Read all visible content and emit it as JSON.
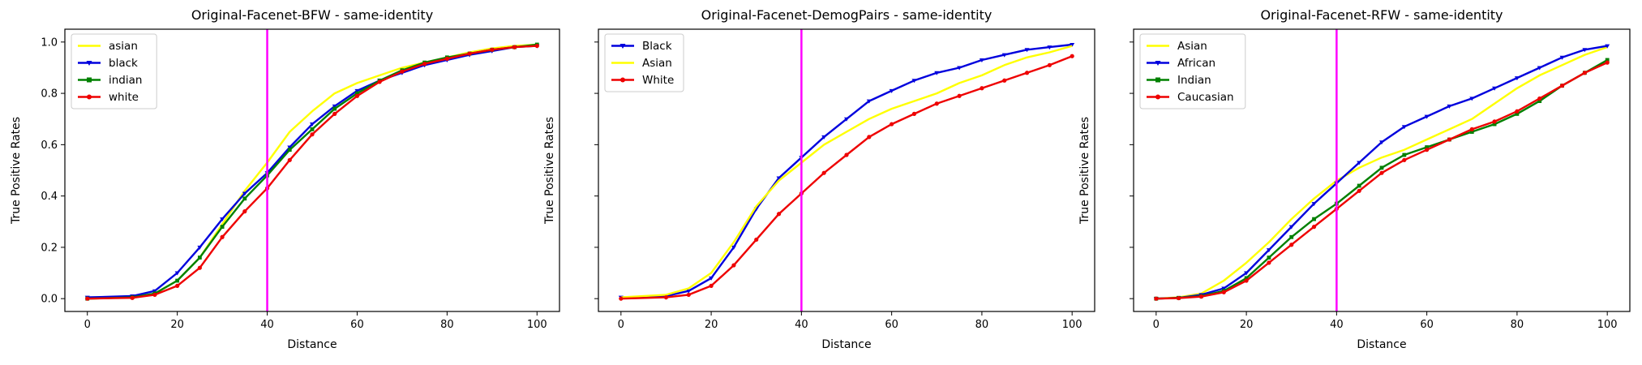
{
  "figure": {
    "colors": {
      "axis": "#000000",
      "marker_line": "#ff00ff",
      "legend_border": "#cccccc"
    }
  },
  "chart_data": [
    {
      "type": "line",
      "title": "Original-Facenet-BFW - same-identity",
      "xlabel": "Distance",
      "ylabel": "True Positive Rates",
      "xlim": [
        -5,
        105
      ],
      "ylim": [
        -0.05,
        1.05
      ],
      "xticks": [
        "0",
        "20",
        "40",
        "60",
        "80",
        "100"
      ],
      "yticks": [
        "0.0",
        "0.2",
        "0.4",
        "0.6",
        "0.8",
        "1.0"
      ],
      "show_ytick_labels": true,
      "vline_x": 40,
      "legend_position": "top-left",
      "grid": false,
      "series": [
        {
          "name": "asian",
          "color": "#ffff00",
          "marker": "none",
          "x": [
            0,
            10,
            15,
            20,
            25,
            30,
            35,
            40,
            45,
            50,
            55,
            60,
            65,
            70,
            75,
            80,
            85,
            90,
            95,
            100
          ],
          "y": [
            0.0,
            0.005,
            0.02,
            0.07,
            0.16,
            0.29,
            0.42,
            0.53,
            0.65,
            0.73,
            0.8,
            0.84,
            0.87,
            0.9,
            0.92,
            0.94,
            0.96,
            0.975,
            0.985,
            0.99
          ]
        },
        {
          "name": "black",
          "color": "#0000dd",
          "marker": "triangle",
          "x": [
            0,
            10,
            15,
            20,
            25,
            30,
            35,
            40,
            45,
            50,
            55,
            60,
            65,
            70,
            75,
            80,
            85,
            90,
            95,
            100
          ],
          "y": [
            0.005,
            0.01,
            0.03,
            0.1,
            0.2,
            0.31,
            0.41,
            0.49,
            0.59,
            0.68,
            0.75,
            0.81,
            0.85,
            0.88,
            0.91,
            0.93,
            0.95,
            0.965,
            0.98,
            0.985
          ]
        },
        {
          "name": "indian",
          "color": "#008000",
          "marker": "square",
          "x": [
            0,
            10,
            15,
            20,
            25,
            30,
            35,
            40,
            45,
            50,
            55,
            60,
            65,
            70,
            75,
            80,
            85,
            90,
            95,
            100
          ],
          "y": [
            0.0,
            0.005,
            0.02,
            0.07,
            0.16,
            0.28,
            0.39,
            0.48,
            0.58,
            0.66,
            0.74,
            0.8,
            0.85,
            0.89,
            0.92,
            0.94,
            0.955,
            0.97,
            0.98,
            0.99
          ]
        },
        {
          "name": "white",
          "color": "#ee0000",
          "marker": "circle",
          "x": [
            0,
            10,
            15,
            20,
            25,
            30,
            35,
            40,
            45,
            50,
            55,
            60,
            65,
            70,
            75,
            80,
            85,
            90,
            95,
            100
          ],
          "y": [
            0.0,
            0.003,
            0.015,
            0.05,
            0.12,
            0.24,
            0.34,
            0.43,
            0.54,
            0.64,
            0.72,
            0.79,
            0.845,
            0.885,
            0.915,
            0.935,
            0.955,
            0.97,
            0.98,
            0.985
          ]
        }
      ]
    },
    {
      "type": "line",
      "title": "Original-Facenet-DemogPairs - same-identity",
      "xlabel": "Distance",
      "ylabel": "True Positive Rates",
      "xlim": [
        -5,
        105
      ],
      "ylim": [
        -0.05,
        1.05
      ],
      "xticks": [
        "0",
        "20",
        "40",
        "60",
        "80",
        "100"
      ],
      "yticks": [
        "0.0",
        "0.2",
        "0.4",
        "0.6",
        "0.8",
        "1.0"
      ],
      "show_ytick_labels": false,
      "vline_x": 40,
      "legend_position": "top-left",
      "grid": false,
      "series": [
        {
          "name": "Black",
          "color": "#0000dd",
          "marker": "triangle",
          "x": [
            0,
            10,
            15,
            20,
            25,
            30,
            35,
            40,
            45,
            50,
            55,
            60,
            65,
            70,
            75,
            80,
            85,
            90,
            95,
            100
          ],
          "y": [
            0.005,
            0.01,
            0.03,
            0.08,
            0.2,
            0.35,
            0.47,
            0.55,
            0.63,
            0.7,
            0.77,
            0.81,
            0.85,
            0.88,
            0.9,
            0.93,
            0.95,
            0.97,
            0.98,
            0.99
          ]
        },
        {
          "name": "Asian",
          "color": "#ffff00",
          "marker": "none",
          "x": [
            0,
            10,
            15,
            20,
            25,
            30,
            35,
            40,
            45,
            50,
            55,
            60,
            65,
            70,
            75,
            80,
            85,
            90,
            95,
            100
          ],
          "y": [
            0.005,
            0.015,
            0.04,
            0.1,
            0.22,
            0.36,
            0.46,
            0.53,
            0.6,
            0.65,
            0.7,
            0.74,
            0.77,
            0.8,
            0.84,
            0.87,
            0.91,
            0.94,
            0.96,
            0.985
          ]
        },
        {
          "name": "White",
          "color": "#ee0000",
          "marker": "circle",
          "x": [
            0,
            10,
            15,
            20,
            25,
            30,
            35,
            40,
            45,
            50,
            55,
            60,
            65,
            70,
            75,
            80,
            85,
            90,
            95,
            100
          ],
          "y": [
            0.0,
            0.005,
            0.015,
            0.05,
            0.13,
            0.23,
            0.33,
            0.41,
            0.49,
            0.56,
            0.63,
            0.68,
            0.72,
            0.76,
            0.79,
            0.82,
            0.85,
            0.88,
            0.91,
            0.945
          ]
        }
      ]
    },
    {
      "type": "line",
      "title": "Original-Facenet-RFW - same-identity",
      "xlabel": "Distance",
      "ylabel": "True Positive Rates",
      "xlim": [
        -5,
        105
      ],
      "ylim": [
        -0.05,
        1.05
      ],
      "xticks": [
        "0",
        "20",
        "40",
        "60",
        "80",
        "100"
      ],
      "yticks": [
        "0.0",
        "0.2",
        "0.4",
        "0.6",
        "0.8",
        "1.0"
      ],
      "show_ytick_labels": false,
      "vline_x": 40,
      "legend_position": "top-left",
      "grid": false,
      "series": [
        {
          "name": "Asian",
          "color": "#ffff00",
          "marker": "none",
          "x": [
            0,
            5,
            10,
            15,
            20,
            25,
            30,
            35,
            40,
            45,
            50,
            55,
            60,
            65,
            70,
            75,
            80,
            85,
            90,
            95,
            100
          ],
          "y": [
            0.0,
            0.005,
            0.02,
            0.07,
            0.14,
            0.22,
            0.31,
            0.39,
            0.46,
            0.51,
            0.55,
            0.58,
            0.62,
            0.66,
            0.7,
            0.76,
            0.82,
            0.87,
            0.91,
            0.95,
            0.98
          ]
        },
        {
          "name": "African",
          "color": "#0000dd",
          "marker": "triangle",
          "x": [
            0,
            5,
            10,
            15,
            20,
            25,
            30,
            35,
            40,
            45,
            50,
            55,
            60,
            65,
            70,
            75,
            80,
            85,
            90,
            95,
            100
          ],
          "y": [
            0.0,
            0.003,
            0.015,
            0.04,
            0.1,
            0.19,
            0.28,
            0.37,
            0.45,
            0.53,
            0.61,
            0.67,
            0.71,
            0.75,
            0.78,
            0.82,
            0.86,
            0.9,
            0.94,
            0.97,
            0.985
          ]
        },
        {
          "name": "Indian",
          "color": "#008000",
          "marker": "square",
          "x": [
            0,
            5,
            10,
            15,
            20,
            25,
            30,
            35,
            40,
            45,
            50,
            55,
            60,
            65,
            70,
            75,
            80,
            85,
            90,
            95,
            100
          ],
          "y": [
            0.0,
            0.003,
            0.01,
            0.03,
            0.08,
            0.16,
            0.24,
            0.31,
            0.37,
            0.44,
            0.51,
            0.56,
            0.59,
            0.62,
            0.65,
            0.68,
            0.72,
            0.77,
            0.83,
            0.88,
            0.93
          ]
        },
        {
          "name": "Caucasian",
          "color": "#ee0000",
          "marker": "circle",
          "x": [
            0,
            5,
            10,
            15,
            20,
            25,
            30,
            35,
            40,
            45,
            50,
            55,
            60,
            65,
            70,
            75,
            80,
            85,
            90,
            95,
            100
          ],
          "y": [
            0.0,
            0.002,
            0.008,
            0.025,
            0.07,
            0.14,
            0.21,
            0.28,
            0.35,
            0.42,
            0.49,
            0.54,
            0.58,
            0.62,
            0.66,
            0.69,
            0.73,
            0.78,
            0.83,
            0.88,
            0.92
          ]
        }
      ]
    }
  ]
}
